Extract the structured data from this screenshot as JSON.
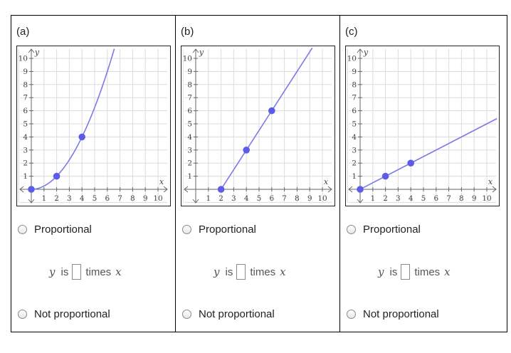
{
  "panels": [
    {
      "label": "(a)",
      "options": {
        "proportional": "Proportional",
        "not_proportional": "Not proportional"
      },
      "equation": {
        "y": "y",
        "is": "is",
        "times": "times",
        "x": "x"
      },
      "chart_data": {
        "type": "line",
        "xlabel": "x",
        "ylabel": "y",
        "xlim": [
          -1,
          10.8
        ],
        "ylim": [
          -1.1,
          10.8
        ],
        "x_ticks": [
          1,
          2,
          3,
          4,
          5,
          6,
          7,
          8,
          9,
          10
        ],
        "y_ticks": [
          1,
          2,
          3,
          4,
          5,
          6,
          7,
          8,
          9,
          10
        ],
        "grid": true,
        "curve": "quadratic",
        "equation_shown": "none",
        "curve_points": [
          [
            0,
            0
          ],
          [
            1,
            0.25
          ],
          [
            2,
            1
          ],
          [
            3,
            2.25
          ],
          [
            4,
            4
          ],
          [
            5,
            6.25
          ],
          [
            6,
            9
          ],
          [
            6.5,
            10.56
          ]
        ],
        "points": [
          [
            0,
            0
          ],
          [
            2,
            1
          ],
          [
            4,
            4
          ]
        ],
        "line_color": "#7b7be8",
        "point_color": "#5c5ce6"
      }
    },
    {
      "label": "(b)",
      "options": {
        "proportional": "Proportional",
        "not_proportional": "Not proportional"
      },
      "equation": {
        "y": "y",
        "is": "is",
        "times": "times",
        "x": "x"
      },
      "chart_data": {
        "type": "line",
        "xlabel": "x",
        "ylabel": "y",
        "xlim": [
          -1,
          10.8
        ],
        "ylim": [
          -1.1,
          10.8
        ],
        "x_ticks": [
          1,
          2,
          3,
          4,
          5,
          6,
          7,
          8,
          9,
          10
        ],
        "y_ticks": [
          1,
          2,
          3,
          4,
          5,
          6,
          7,
          8,
          9,
          10
        ],
        "grid": true,
        "curve": "linear",
        "curve_points": [
          [
            2,
            0
          ],
          [
            9.2,
            10.8
          ]
        ],
        "points": [
          [
            2,
            0
          ],
          [
            4,
            3
          ],
          [
            6,
            6
          ]
        ],
        "line_color": "#7b7be8",
        "point_color": "#5c5ce6"
      }
    },
    {
      "label": "(c)",
      "options": {
        "proportional": "Proportional",
        "not_proportional": "Not proportional"
      },
      "equation": {
        "y": "y",
        "is": "is",
        "times": "times",
        "x": "x"
      },
      "chart_data": {
        "type": "line",
        "xlabel": "x",
        "ylabel": "y",
        "xlim": [
          -1,
          10.8
        ],
        "ylim": [
          -1.1,
          10.8
        ],
        "x_ticks": [
          1,
          2,
          3,
          4,
          5,
          6,
          7,
          8,
          9,
          10
        ],
        "y_ticks": [
          1,
          2,
          3,
          4,
          5,
          6,
          7,
          8,
          9,
          10
        ],
        "grid": true,
        "curve": "linear",
        "curve_points": [
          [
            0,
            0
          ],
          [
            10.8,
            5.4
          ]
        ],
        "points": [
          [
            0,
            0
          ],
          [
            2,
            1
          ],
          [
            4,
            2
          ]
        ],
        "line_color": "#7b7be8",
        "point_color": "#5c5ce6"
      }
    }
  ]
}
